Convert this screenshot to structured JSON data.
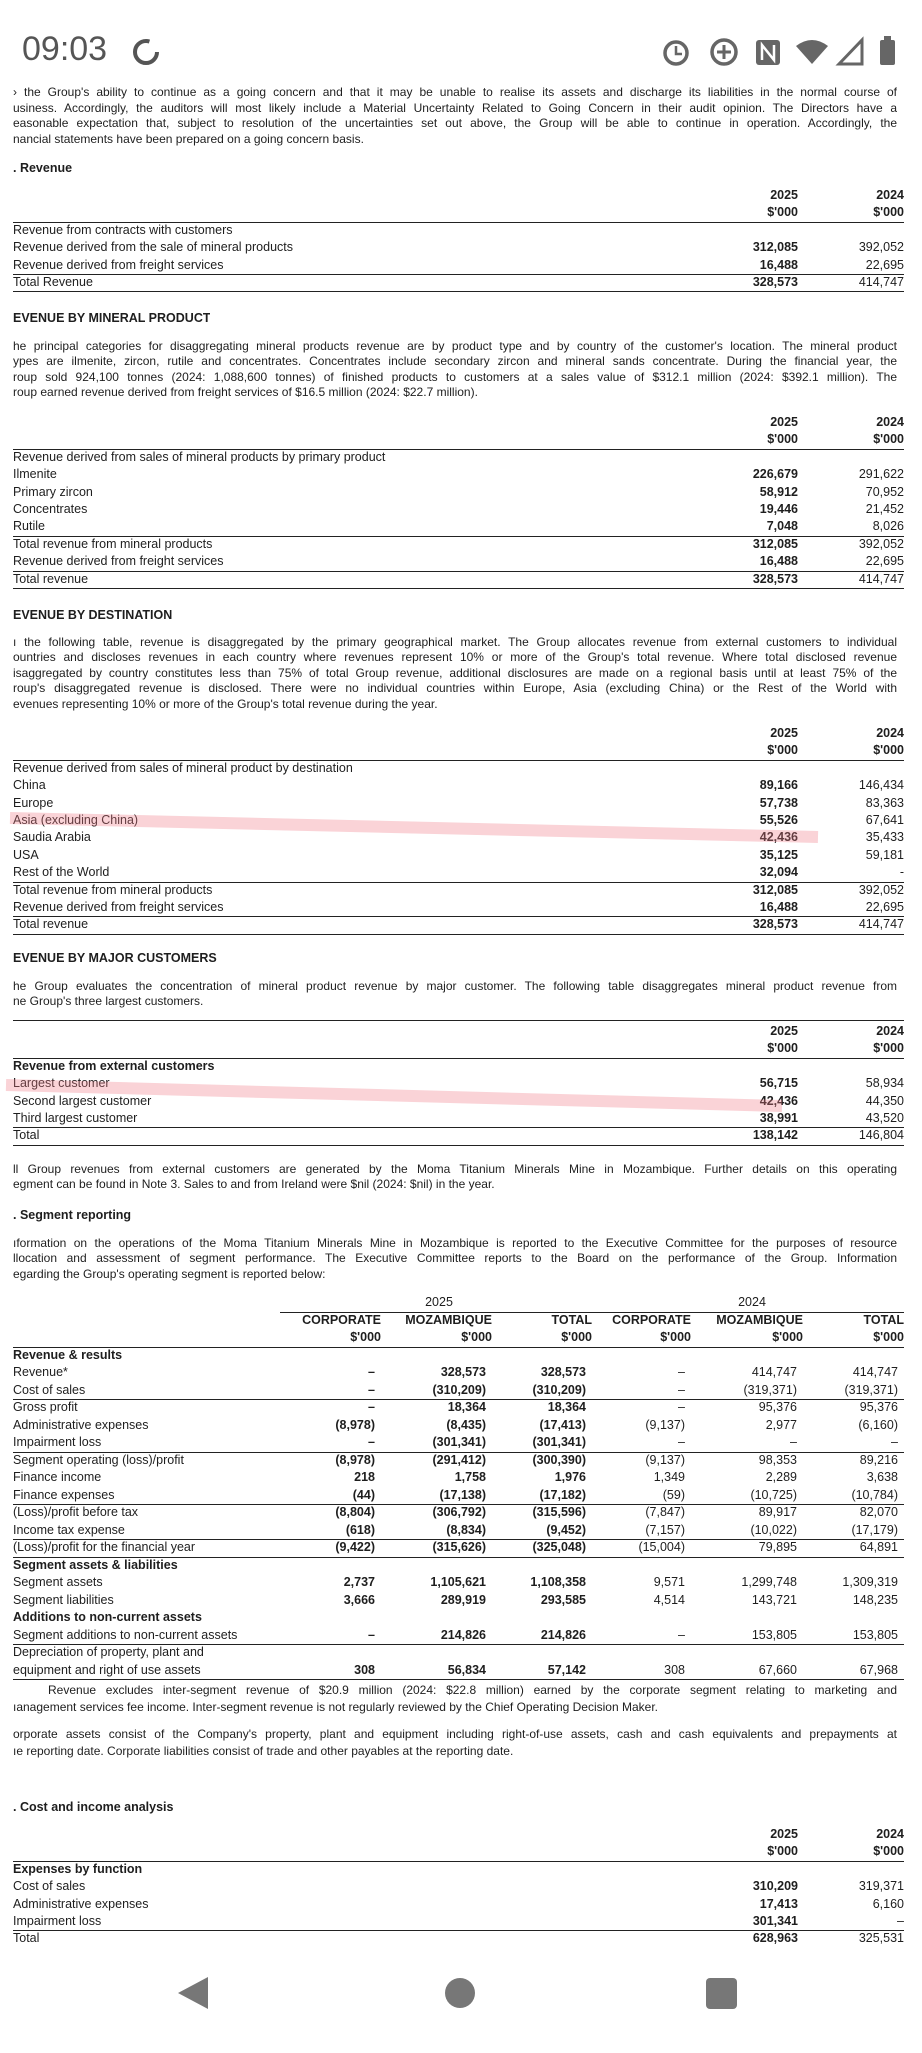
{
  "status_bar": {
    "time": "09:03"
  },
  "blocks": [
    {
      "paragraph": [
        "› the Group's ability to continue as a going concern and that it may be unable to realise its assets and discharge its liabilities in the normal course of",
        "usiness. Accordingly, the auditors will most likely include a Material Uncertainty Related to Going Concern in their audit opinion. The Directors have a",
        "easonable expectation that, subject to resolution of the uncertainties set out above, the Group will be able to continue in operation. Accordingly, the",
        "nancial statements have been prepared on a going concern basis."
      ]
    },
    {
      "heading": ". Revenue"
    },
    {
      "table": {
        "columns": [
          [
            "2025",
            "$'000"
          ],
          [
            "2024",
            "$'000"
          ]
        ],
        "rows": [
          [
            "Revenue from contracts with customers"
          ],
          [
            "Revenue derived from the sale of mineral products",
            "312,085",
            "392,052"
          ],
          [
            "Revenue derived from freight services",
            "16,488",
            "22,695"
          ],
          [
            "Total Revenue",
            "328,573",
            "414,747"
          ]
        ]
      }
    },
    {
      "heading": "EVENUE BY MINERAL PRODUCT"
    },
    {
      "paragraph": [
        "he principal categories for disaggregating mineral products revenue are by product type and by country of the customer's location. The mineral product",
        "ypes are ilmenite, zircon, rutile and concentrates. Concentrates include secondary zircon and mineral sands concentrate. During the financial year, the",
        "roup sold 924,100 tonnes (2024: 1,088,600 tonnes) of finished products to customers at a sales value of $312.1 million (2024: $392.1 million). The",
        "roup earned revenue derived from freight services of $16.5 million (2024: $22.7 million)."
      ]
    },
    {
      "table": {
        "columns": [
          [
            "2025",
            "$'000"
          ],
          [
            "2024",
            "$'000"
          ]
        ],
        "rows": [
          [
            "Revenue derived from sales of mineral products by primary product"
          ],
          [
            "Ilmenite",
            "226,679",
            "291,622"
          ],
          [
            "Primary zircon",
            "58,912",
            "70,952"
          ],
          [
            "Concentrates",
            "19,446",
            "21,452"
          ],
          [
            "Rutile",
            "7,048",
            "8,026"
          ],
          [
            "Total revenue from mineral products",
            "312,085",
            "392,052"
          ],
          [
            "Revenue derived from freight services",
            "16,488",
            "22,695"
          ],
          [
            "Total revenue",
            "328,573",
            "414,747"
          ]
        ]
      }
    },
    {
      "heading": "EVENUE BY DESTINATION"
    },
    {
      "paragraph": [
        "ı the following table, revenue is disaggregated by the primary geographical market. The Group allocates revenue from external customers to individual",
        "ountries and discloses revenues in each country where revenues represent 10% or more of the Group's total revenue. Where total disclosed revenue",
        "isaggregated by country constitutes less than 75% of total Group revenue, additional disclosures are made on a regional basis until at least 75% of the",
        "roup's disaggregated revenue is disclosed. There were no individual countries within Europe, Asia (excluding China) or the Rest of the World with",
        "evenues representing 10% or more of the Group's total revenue during the year."
      ]
    },
    {
      "table": {
        "columns": [
          [
            "2025",
            "$'000"
          ],
          [
            "2024",
            "$'000"
          ]
        ],
        "rows": [
          [
            "Revenue derived from sales of mineral product by destination"
          ],
          [
            "China",
            "89,166",
            "146,434"
          ],
          [
            "Europe",
            "57,738",
            "83,363"
          ],
          [
            "Asia (excluding China)",
            "55,526",
            "67,641"
          ],
          [
            "Saudia Arabia",
            "42,436",
            "35,433"
          ],
          [
            "USA",
            "35,125",
            "59,181"
          ],
          [
            "Rest of the World",
            "32,094",
            "-"
          ],
          [
            "Total revenue from mineral products",
            "312,085",
            "392,052"
          ],
          [
            "Revenue derived from freight services",
            "16,488",
            "22,695"
          ],
          [
            "Total revenue",
            "328,573",
            "414,747"
          ]
        ]
      }
    },
    {
      "heading": "EVENUE BY MAJOR CUSTOMERS"
    },
    {
      "paragraph": [
        "he Group evaluates the concentration of mineral product revenue by major customer. The following table disaggregates mineral product revenue from",
        "ne Group's three largest customers."
      ]
    },
    {
      "table": {
        "columns": [
          [
            "2025",
            "$'000"
          ],
          [
            "2024",
            "$'000"
          ]
        ],
        "rows": [
          [
            "Revenue from external customers"
          ],
          [
            "Largest customer",
            "56,715",
            "58,934"
          ],
          [
            "Second largest customer",
            "42,436",
            "44,350"
          ],
          [
            "Third largest customer",
            "38,991",
            "43,520"
          ],
          [
            "Total",
            "138,142",
            "146,804"
          ]
        ]
      }
    },
    {
      "paragraph": [
        "ll Group revenues from external customers are generated by the Moma Titanium Minerals Mine in Mozambique. Further details on this operating",
        "egment can be found in Note 3. Sales to and from Ireland were $nil (2024: $nil) in the year."
      ]
    },
    {
      "heading": ". Segment reporting"
    },
    {
      "paragraph": [
        "ıformation on the operations of the Moma Titanium Minerals Mine in Mozambique is reported to the Executive Committee for the purposes of resource",
        "llocation and assessment of segment performance. The Executive Committee reports to the Board on the performance of the Group. Information",
        "egarding the Group's operating segment is reported below:"
      ]
    },
    {
      "segment_table": {
        "year_groups": [
          "2025",
          "2024"
        ],
        "columns": [
          [
            "CORPORATE",
            "$'000"
          ],
          [
            "MOZAMBIQUE",
            "$'000"
          ],
          [
            "TOTAL",
            "$'000"
          ],
          [
            "CORPORATE",
            "$'000"
          ],
          [
            "MOZAMBIQUE",
            "$'000"
          ],
          [
            "TOTAL",
            "$'000"
          ]
        ],
        "rows": [
          [
            "Revenue & results"
          ],
          [
            "Revenue*",
            "–",
            "328,573",
            "328,573",
            "–",
            "414,747",
            "414,747"
          ],
          [
            "Cost of sales",
            "–",
            "(310,209)",
            "(310,209)",
            "–",
            "(319,371)",
            "(319,371)"
          ],
          [
            "Gross profit",
            "–",
            "18,364",
            "18,364",
            "–",
            "95,376",
            "95,376"
          ],
          [
            "Administrative expenses",
            "(8,978)",
            "(8,435)",
            "(17,413)",
            "(9,137)",
            "2,977",
            "(6,160)"
          ],
          [
            "Impairment loss",
            "–",
            "(301,341)",
            "(301,341)",
            "–",
            "–",
            "–"
          ],
          [
            "Segment operating (loss)/profit",
            "(8,978)",
            "(291,412)",
            "(300,390)",
            "(9,137)",
            "98,353",
            "89,216"
          ],
          [
            "Finance income",
            "218",
            "1,758",
            "1,976",
            "1,349",
            "2,289",
            "3,638"
          ],
          [
            "Finance expenses",
            "(44)",
            "(17,138)",
            "(17,182)",
            "(59)",
            "(10,725)",
            "(10,784)"
          ],
          [
            "(Loss)/profit before tax",
            "(8,804)",
            "(306,792)",
            "(315,596)",
            "(7,847)",
            "89,917",
            "82,070"
          ],
          [
            "Income tax expense",
            "(618)",
            "(8,834)",
            "(9,452)",
            "(7,157)",
            "(10,022)",
            "(17,179)"
          ],
          [
            "(Loss)/profit for the financial year",
            "(9,422)",
            "(315,626)",
            "(325,048)",
            "(15,004)",
            "79,895",
            "64,891"
          ],
          [
            "Segment assets & liabilities"
          ],
          [
            "Segment assets",
            "2,737",
            "1,105,621",
            "1,108,358",
            "9,571",
            "1,299,748",
            "1,309,319"
          ],
          [
            "Segment liabilities",
            "3,666",
            "289,919",
            "293,585",
            "4,514",
            "143,721",
            "148,235"
          ],
          [
            "Additions to non-current assets"
          ],
          [
            "Segment additions to non-current assets",
            "–",
            "214,826",
            "214,826",
            "–",
            "153,805",
            "153,805"
          ],
          [
            "Depreciation of property, plant and"
          ],
          [
            "equipment and right of use assets",
            "308",
            "56,834",
            "57,142",
            "308",
            "67,660",
            "67,968"
          ]
        ]
      }
    },
    {
      "paragraph": [
        "Revenue excludes inter-segment revenue of $20.9 million (2024: $22.8 million) earned by the corporate segment relating to marketing and",
        "ıanagement services fee income. Inter-segment revenue is not regularly reviewed by the Chief Operating Decision Maker."
      ]
    },
    {
      "paragraph": [
        "orporate assets consist of the Company's property, plant and equipment including right-of-use assets, cash and cash equivalents and prepayments at",
        "ıe reporting date. Corporate liabilities consist of trade and other payables at the reporting date."
      ]
    },
    {
      "heading": ". Cost and income analysis"
    },
    {
      "table": {
        "columns": [
          [
            "2025",
            "$'000"
          ],
          [
            "2024",
            "$'000"
          ]
        ],
        "rows": [
          [
            "Expenses by function"
          ],
          [
            "Cost of sales",
            "310,209",
            "319,371"
          ],
          [
            "Administrative expenses",
            "17,413",
            "6,160"
          ],
          [
            "Impairment loss",
            "301,341",
            "–"
          ],
          [
            "Total",
            "628,963",
            "325,531"
          ]
        ]
      }
    }
  ]
}
